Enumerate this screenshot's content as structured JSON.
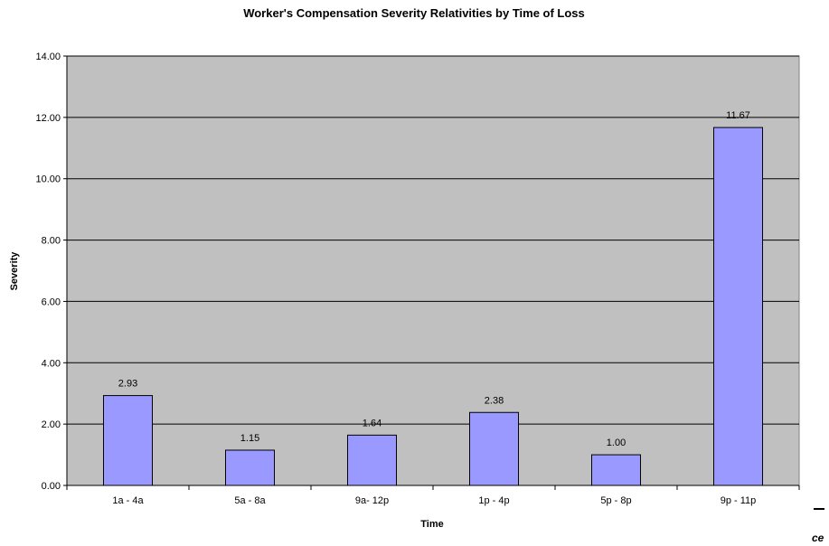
{
  "chart_data": {
    "type": "bar",
    "title": "Worker's Compensation Severity Relativities by Time of Loss",
    "xlabel": "Time",
    "ylabel": "Severity",
    "categories": [
      "1a - 4a",
      "5a - 8a",
      "9a- 12p",
      "1p - 4p",
      "5p - 8p",
      "9p - 11p"
    ],
    "values": [
      2.93,
      1.15,
      1.64,
      2.38,
      1.0,
      11.67
    ],
    "data_labels": [
      "2.93",
      "1.15",
      "1.64",
      "2.38",
      "1.00",
      "11.67"
    ],
    "ylim": [
      0,
      14
    ],
    "yticks": [
      "0.00",
      "2.00",
      "4.00",
      "6.00",
      "8.00",
      "10.00",
      "12.00",
      "14.00"
    ],
    "grid": true,
    "legend": "none",
    "colors": {
      "bar_fill": "#9999ff",
      "bar_stroke": "#000000",
      "plot_bg": "#c0c0c0",
      "grid": "#000000"
    }
  },
  "edge_text": "ce"
}
